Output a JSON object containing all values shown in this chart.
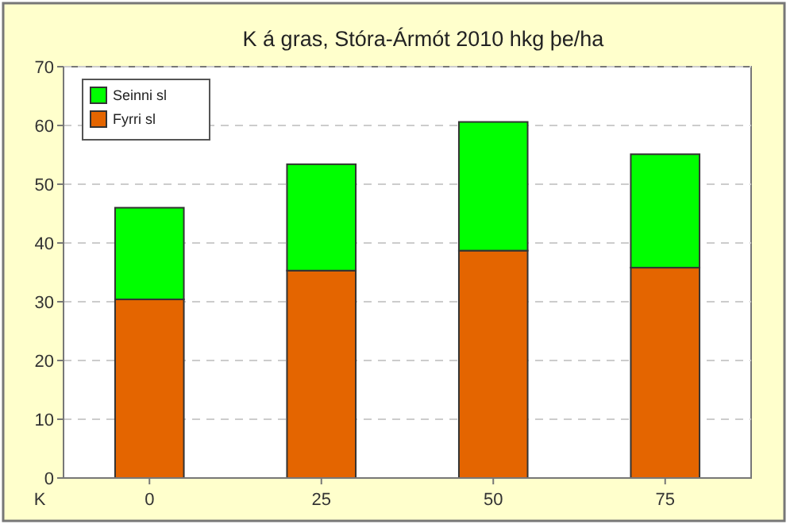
{
  "chart_data": {
    "type": "bar",
    "title": "K á gras, Stóra-Ármót  2010 hkg þe/ha",
    "xlabel": "K",
    "categories": [
      "0",
      "25",
      "50",
      "75"
    ],
    "stacked": true,
    "series": [
      {
        "name": "Fyrri sl",
        "color": "#e46500",
        "values": [
          30.4,
          35.3,
          38.7,
          35.8
        ]
      },
      {
        "name": "Seinni sl",
        "color": "#00ff00",
        "values": [
          15.6,
          18.1,
          21.9,
          19.3
        ]
      }
    ],
    "ylim": [
      0,
      70
    ],
    "yticks": [
      0,
      10,
      20,
      30,
      40,
      50,
      60,
      70
    ],
    "grid": "y",
    "legend": "top left"
  }
}
